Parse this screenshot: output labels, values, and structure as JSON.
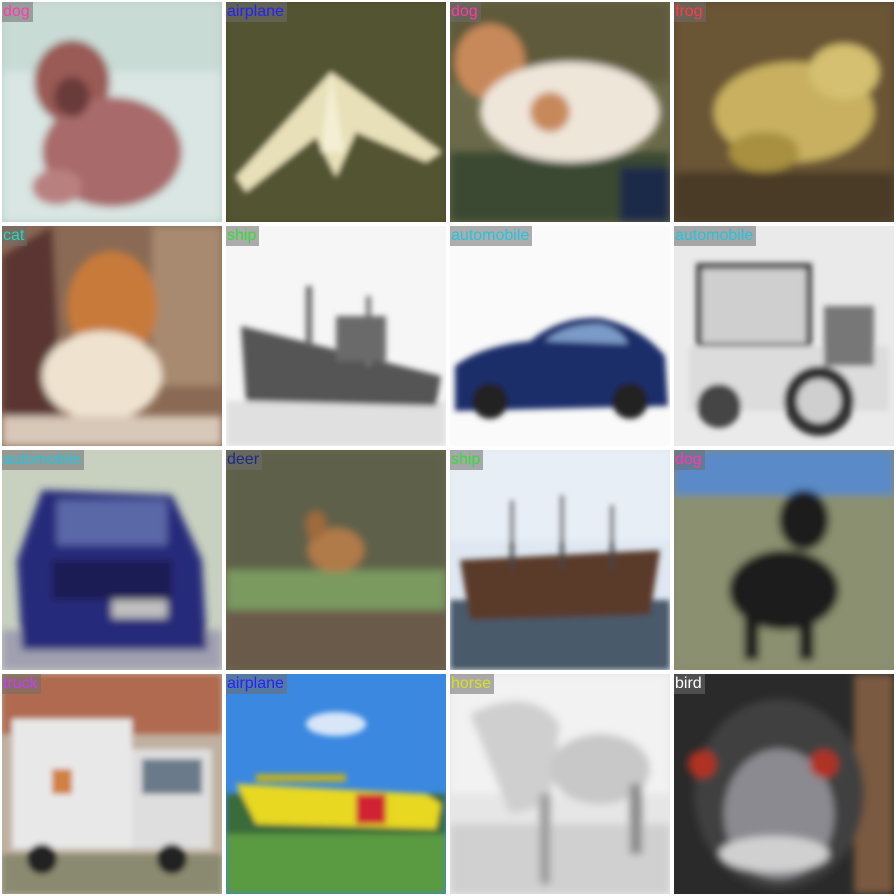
{
  "tiles": [
    {
      "label": "dog",
      "label_color": "#ff3aa6",
      "subject": "dog-photo"
    },
    {
      "label": "airplane",
      "label_color": "#2222ff",
      "subject": "airplane-photo"
    },
    {
      "label": "dog",
      "label_color": "#ff3aa6",
      "subject": "dog-photo"
    },
    {
      "label": "frog",
      "label_color": "#ff3a4a",
      "subject": "frog-photo"
    },
    {
      "label": "cat",
      "label_color": "#22d8c0",
      "subject": "cat-photo"
    },
    {
      "label": "ship",
      "label_color": "#33dd33",
      "subject": "ship-photo"
    },
    {
      "label": "automobile",
      "label_color": "#22c4e0",
      "subject": "automobile-photo"
    },
    {
      "label": "automobile",
      "label_color": "#22c4e0",
      "subject": "automobile-photo"
    },
    {
      "label": "automobile",
      "label_color": "#22c4e0",
      "subject": "automobile-photo"
    },
    {
      "label": "deer",
      "label_color": "#1a2a88",
      "subject": "deer-photo"
    },
    {
      "label": "ship",
      "label_color": "#33dd33",
      "subject": "ship-photo"
    },
    {
      "label": "dog",
      "label_color": "#ff3aa6",
      "subject": "dog-photo"
    },
    {
      "label": "truck",
      "label_color": "#c040ff",
      "subject": "truck-photo"
    },
    {
      "label": "airplane",
      "label_color": "#2222ff",
      "subject": "airplane-photo"
    },
    {
      "label": "horse",
      "label_color": "#d8e020",
      "subject": "horse-photo"
    },
    {
      "label": "bird",
      "label_color": "#ffffff",
      "subject": "bird-photo"
    }
  ]
}
